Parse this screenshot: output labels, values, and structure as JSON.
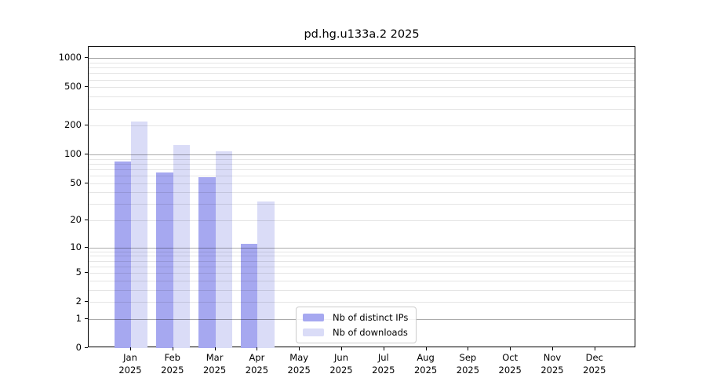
{
  "title": "pd.hg.u133a.2 2025",
  "chart_data": {
    "type": "bar",
    "title": "pd.hg.u133a.2 2025",
    "months": [
      "Jan",
      "Feb",
      "Mar",
      "Apr",
      "May",
      "Jun",
      "Jul",
      "Aug",
      "Sep",
      "Oct",
      "Nov",
      "Dec"
    ],
    "year": "2025",
    "series": [
      {
        "name": "Nb of distinct IPs",
        "color": "#a6a8f0",
        "values": [
          84,
          65,
          58,
          11,
          0,
          0,
          0,
          0,
          0,
          0,
          0,
          0
        ]
      },
      {
        "name": "Nb of downloads",
        "color": "#dadcf7",
        "values": [
          220,
          125,
          107,
          32,
          0,
          0,
          0,
          0,
          0,
          0,
          0,
          0
        ]
      }
    ],
    "y_scale": "log10(value+1)",
    "y_ticks": [
      0,
      1,
      2,
      5,
      10,
      20,
      50,
      100,
      200,
      500,
      1000
    ],
    "y_major_gridlines": [
      1,
      10,
      100,
      1000
    ],
    "ylim": [
      0,
      1309
    ],
    "grid": true,
    "legend_position": "lower center-left",
    "colors": {
      "distinct_ips_bar": "#a6a8f0",
      "downloads_bar": "#dadcf7",
      "major_grid": "#ababab",
      "minor_grid": "#e6e6e6",
      "axis": "#000000",
      "background": "#ffffff"
    }
  }
}
